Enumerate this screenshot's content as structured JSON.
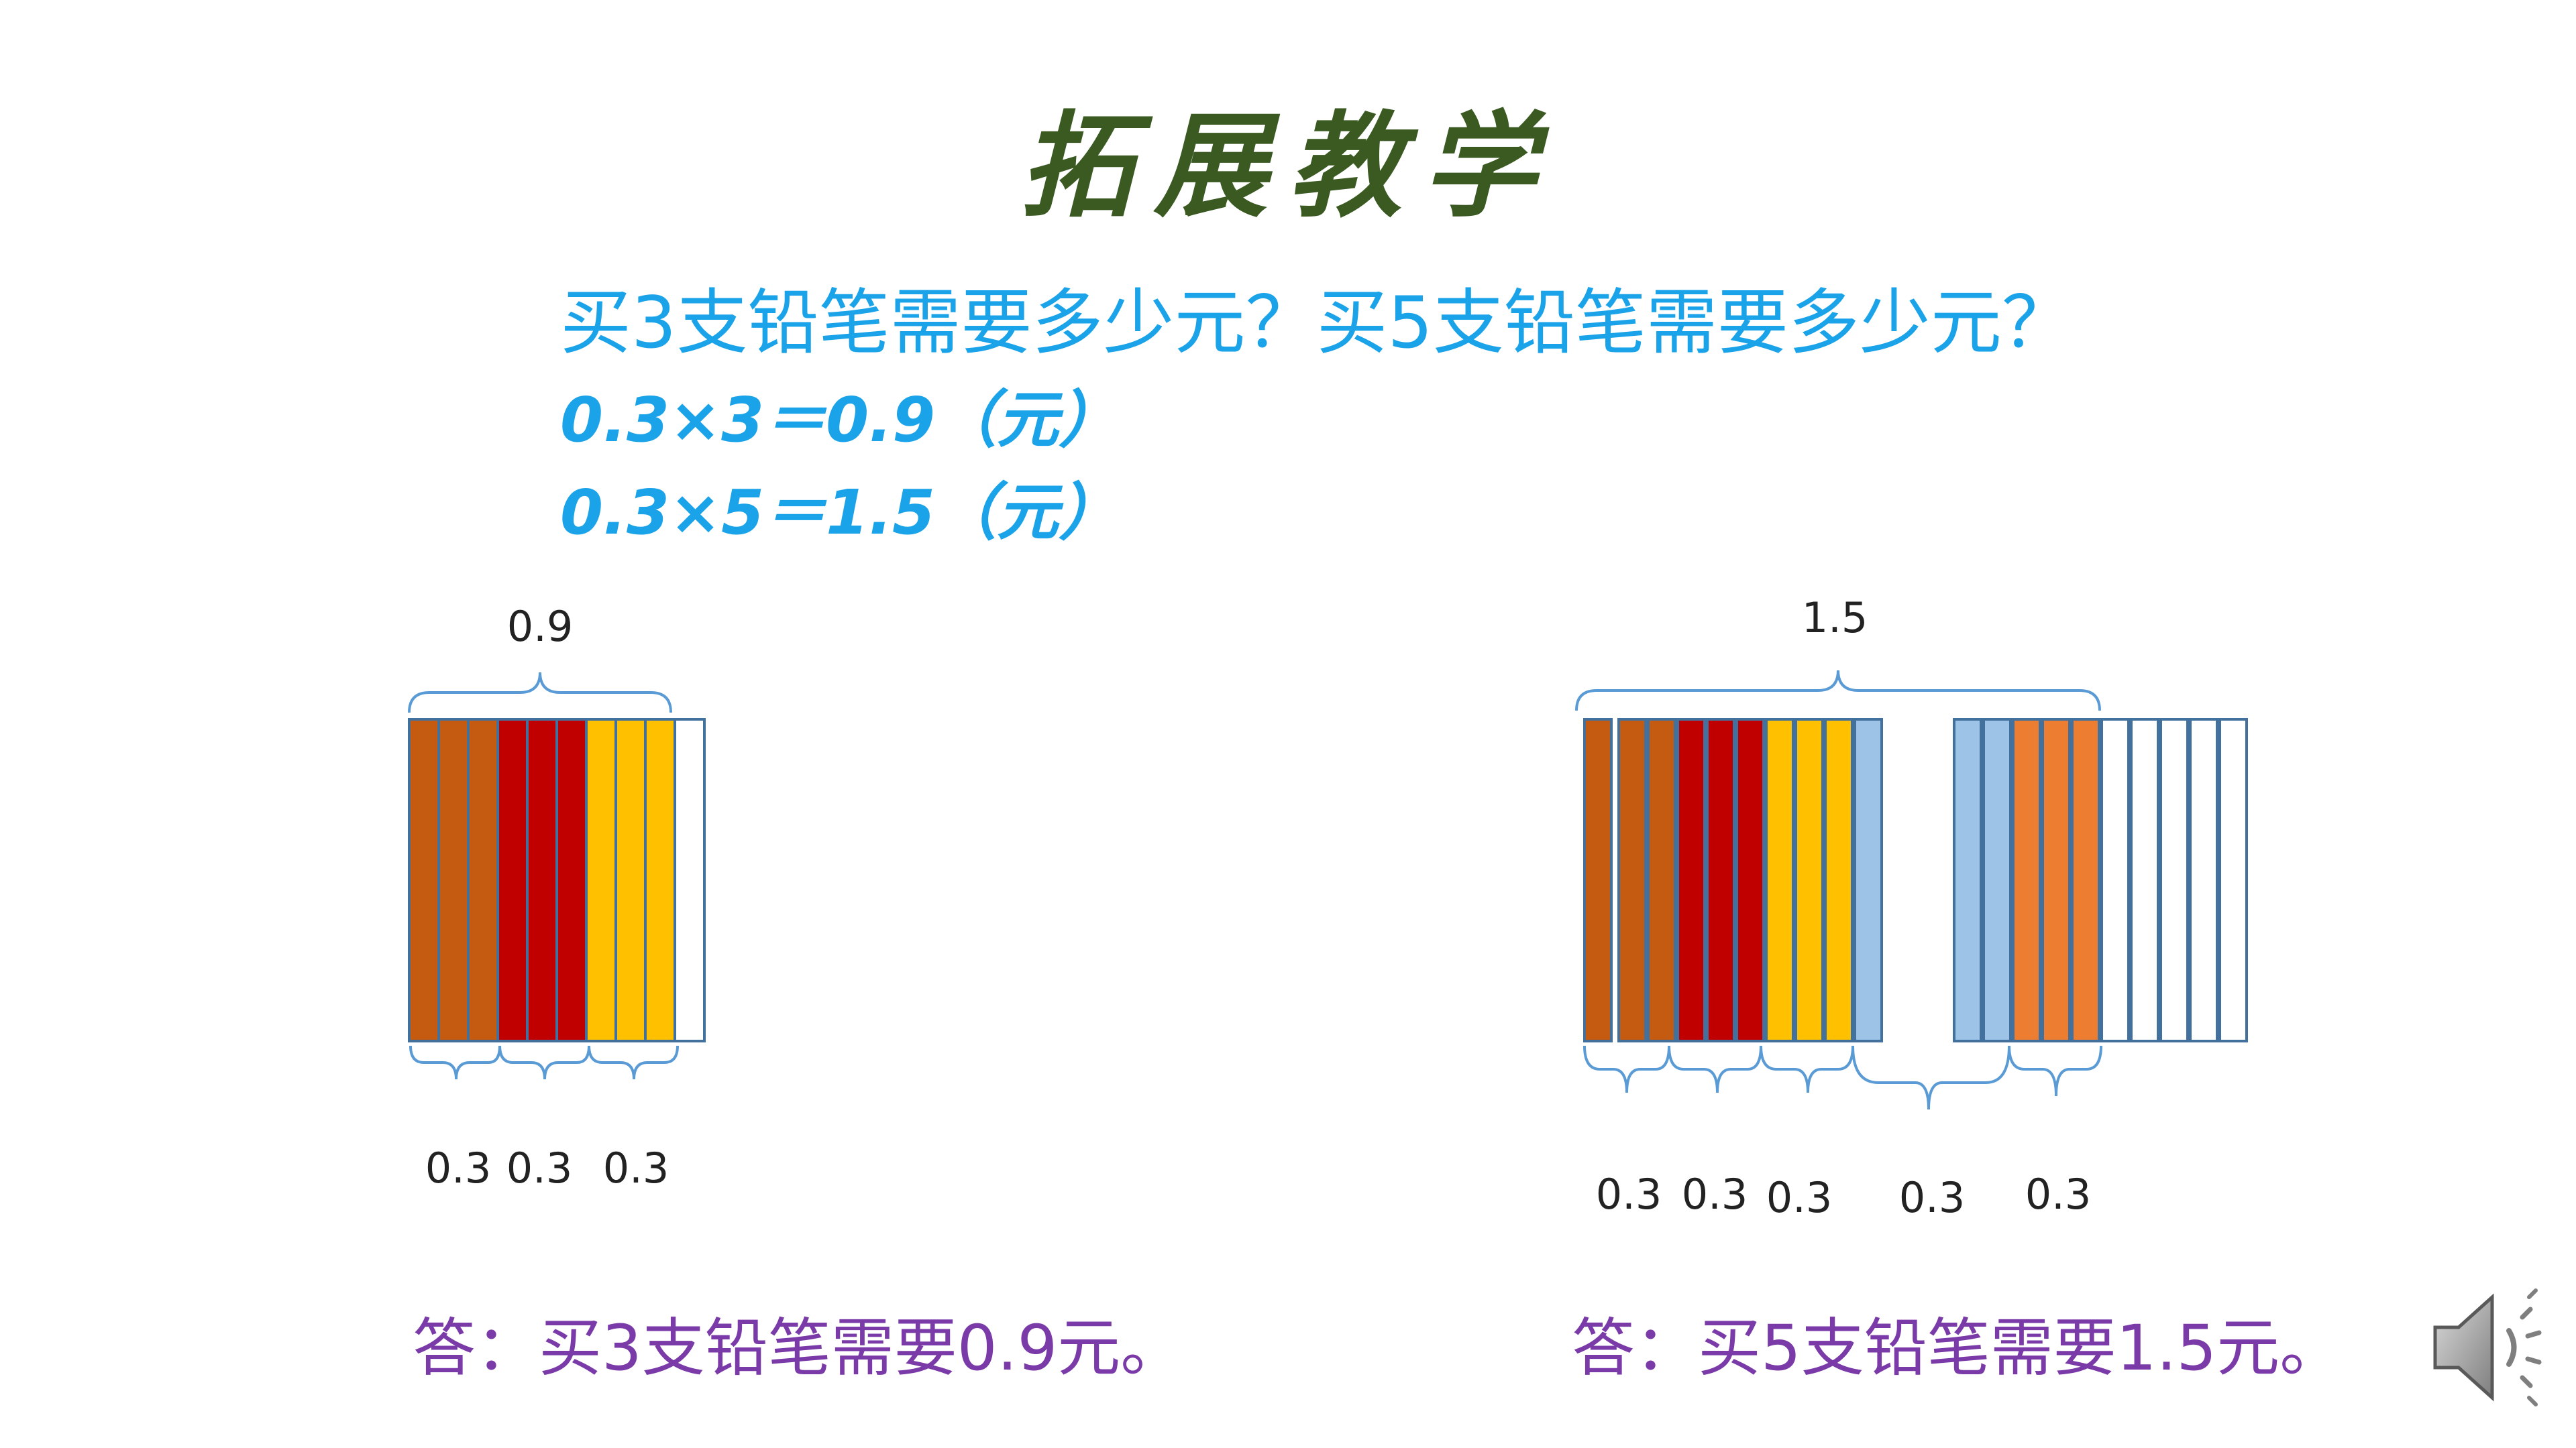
{
  "slide": {
    "title": "拓展教学",
    "question": "买3支铅笔需要多少元？买5支铅笔需要多少元？",
    "equation_1": "0.3×3＝0.9（元）",
    "equation_2": "0.3×5＝1.5（元）"
  },
  "left_diagram": {
    "total_label": "0.9",
    "part_labels": [
      "0.3",
      "0.3",
      "0.3"
    ],
    "strip_colors": [
      "#c55a11",
      "#c55a11",
      "#c55a11",
      "#c00000",
      "#c00000",
      "#c00000",
      "#ffc000",
      "#ffc000",
      "#ffc000",
      "#ffffff"
    ],
    "answer": "答：买3支铅笔需要0.9元。"
  },
  "right_diagram": {
    "total_label": "1.5",
    "part_labels": [
      "0.3",
      "0.3",
      "0.3",
      "0.3",
      "0.3"
    ],
    "strip_colors": [
      "#c55a11",
      "#c55a11",
      "#c55a11",
      "#c00000",
      "#c00000",
      "#c00000",
      "#ffc000",
      "#ffc000",
      "#ffc000",
      "#9dc3e6",
      "#9dc3e6",
      "#9dc3e6",
      "#ed7d31",
      "#ed7d31",
      "#ed7d31",
      "#ffffff",
      "#ffffff",
      "#ffffff",
      "#ffffff",
      "#ffffff"
    ],
    "answer": "答：买5支铅笔需要1.5元。"
  },
  "colors": {
    "title": "#3a5a22",
    "question": "#1aa3e8",
    "answer": "#7a3aa8",
    "strip_border": "#41719c",
    "brace": "#5b9bd5"
  },
  "icons": {
    "audio": "speaker-icon"
  }
}
